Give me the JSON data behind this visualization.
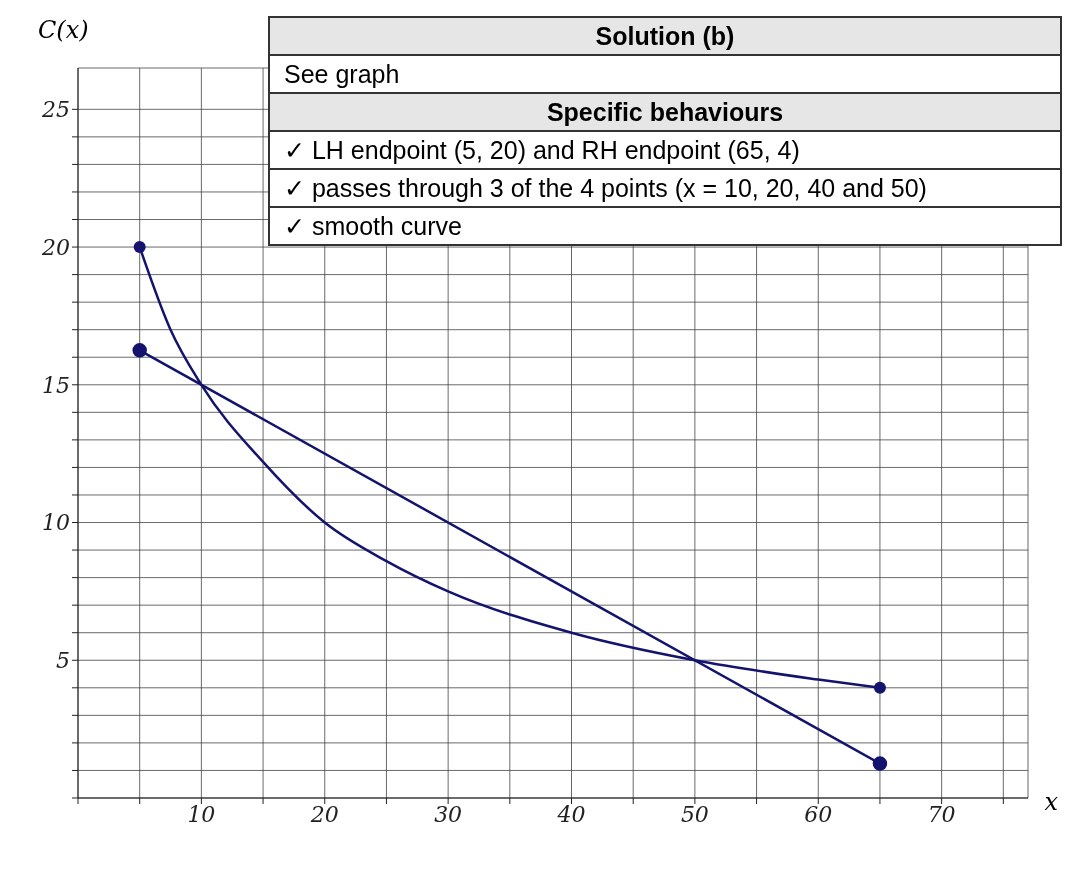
{
  "chart_data": {
    "type": "line",
    "xlabel": "x",
    "ylabel": "C(x)",
    "xlim": [
      0,
      77
    ],
    "ylim": [
      0,
      26.5
    ],
    "xticks": [
      {
        "value": 0,
        "label": null
      },
      {
        "value": 5,
        "label": null
      },
      10,
      {
        "value": 15,
        "label": null
      },
      20,
      {
        "value": 25,
        "label": null
      },
      30,
      {
        "value": 35,
        "label": null
      },
      40,
      {
        "value": 45,
        "label": null
      },
      50,
      {
        "value": 55,
        "label": null
      },
      60,
      {
        "value": 65,
        "label": null
      },
      70,
      {
        "value": 75,
        "label": null
      }
    ],
    "yticks": [
      {
        "value": 0,
        "label": null
      },
      {
        "value": 1,
        "label": null
      },
      {
        "value": 2,
        "label": null
      },
      {
        "value": 3,
        "label": null
      },
      {
        "value": 4,
        "label": null
      },
      5,
      {
        "value": 6,
        "label": null
      },
      {
        "value": 7,
        "label": null
      },
      {
        "value": 8,
        "label": null
      },
      {
        "value": 9,
        "label": null
      },
      10,
      {
        "value": 11,
        "label": null
      },
      {
        "value": 12,
        "label": null
      },
      {
        "value": 13,
        "label": null
      },
      {
        "value": 14,
        "label": null
      },
      15,
      {
        "value": 16,
        "label": null
      },
      {
        "value": 17,
        "label": null
      },
      {
        "value": 18,
        "label": null
      },
      {
        "value": 19,
        "label": null
      },
      20,
      {
        "value": 21,
        "label": null
      },
      {
        "value": 22,
        "label": null
      },
      {
        "value": 23,
        "label": null
      },
      {
        "value": 24,
        "label": null
      },
      25
    ],
    "grid": true,
    "series": [
      {
        "color": "#14146e",
        "marker": "none",
        "x": [
          5,
          7.5,
          10,
          15,
          20,
          25,
          30,
          40,
          50,
          60,
          65
        ],
        "values": [
          20,
          17,
          15,
          12.2,
          10,
          8.6,
          7.5,
          6,
          5,
          4.3,
          4
        ]
      },
      {
        "type": "scatter",
        "color": "#14146e",
        "marker": "circle",
        "x": [
          5,
          65
        ],
        "values": [
          20,
          4
        ]
      },
      {
        "color": "#14146e",
        "marker": "circle",
        "x": [
          5,
          65
        ],
        "values": [
          16.25,
          1.25
        ]
      }
    ],
    "annotations": [
      "Solution (b)",
      "See graph",
      "Specific behaviours",
      "✓ LH endpoint (5, 20) and RH endpoint (65, 4)",
      "✓ passes through 3 of the 4 points (x = 10, 20, 40 and 50)",
      "✓ smooth curve"
    ]
  }
}
